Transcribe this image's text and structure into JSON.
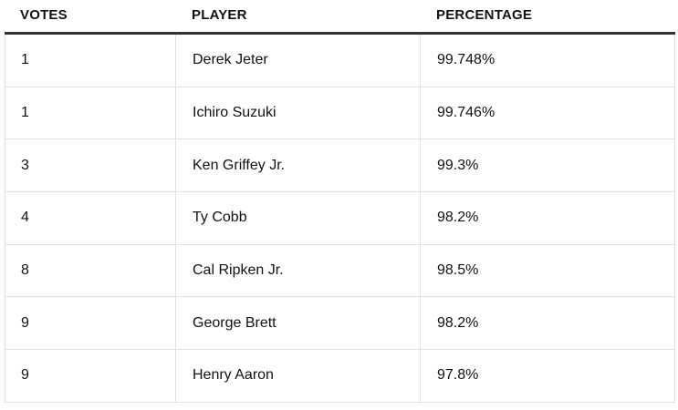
{
  "table": {
    "headers": [
      "VOTES",
      "PLAYER",
      "PERCENTAGE"
    ],
    "rows": [
      {
        "votes": "1",
        "player": "Derek Jeter",
        "percentage": "99.748%"
      },
      {
        "votes": "1",
        "player": "Ichiro Suzuki",
        "percentage": "99.746%"
      },
      {
        "votes": "3",
        "player": "Ken Griffey Jr.",
        "percentage": "99.3%"
      },
      {
        "votes": "4",
        "player": "Ty Cobb",
        "percentage": "98.2%"
      },
      {
        "votes": "8",
        "player": "Cal Ripken Jr.",
        "percentage": "98.5%"
      },
      {
        "votes": "9",
        "player": "George Brett",
        "percentage": "98.2%"
      },
      {
        "votes": "9",
        "player": "Henry Aaron",
        "percentage": "97.8%"
      }
    ]
  }
}
